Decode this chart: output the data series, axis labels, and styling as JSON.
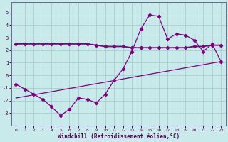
{
  "xlabel": "Windchill (Refroidissement éolien,°C)",
  "bg_color": "#c8eaea",
  "grid_color": "#a0c8c8",
  "line_color": "#800080",
  "xlim": [
    -0.5,
    23.5
  ],
  "ylim": [
    -4,
    5.8
  ],
  "xticks": [
    0,
    1,
    2,
    3,
    4,
    5,
    6,
    7,
    8,
    9,
    10,
    11,
    12,
    13,
    14,
    15,
    16,
    17,
    18,
    19,
    20,
    21,
    22,
    23
  ],
  "yticks": [
    -3,
    -2,
    -1,
    0,
    1,
    2,
    3,
    4,
    5
  ],
  "series1_x": [
    0,
    1,
    2,
    3,
    4,
    5,
    6,
    7,
    8,
    9,
    10,
    11,
    12,
    13,
    14,
    15,
    16,
    17,
    18,
    19,
    20,
    21,
    22,
    23
  ],
  "series1_y": [
    -0.7,
    -1.1,
    -1.5,
    -1.9,
    -2.5,
    -3.2,
    -2.7,
    -1.8,
    -1.9,
    -2.2,
    -1.5,
    -0.4,
    0.5,
    1.9,
    3.7,
    4.8,
    4.7,
    2.9,
    3.3,
    3.2,
    2.8,
    1.9,
    2.5,
    1.1
  ],
  "series2_x": [
    0,
    1,
    2,
    3,
    4,
    5,
    6,
    7,
    8,
    9,
    10,
    11,
    12,
    13,
    14,
    15,
    16,
    17,
    18,
    19,
    20,
    21,
    22,
    23
  ],
  "series2_y": [
    2.5,
    2.5,
    2.5,
    2.5,
    2.5,
    2.5,
    2.5,
    2.5,
    2.5,
    2.4,
    2.3,
    2.3,
    2.3,
    2.2,
    2.2,
    2.2,
    2.2,
    2.2,
    2.2,
    2.2,
    2.3,
    2.3,
    2.4,
    2.4
  ],
  "series3_x": [
    0,
    23
  ],
  "series3_y": [
    -1.8,
    1.1
  ]
}
